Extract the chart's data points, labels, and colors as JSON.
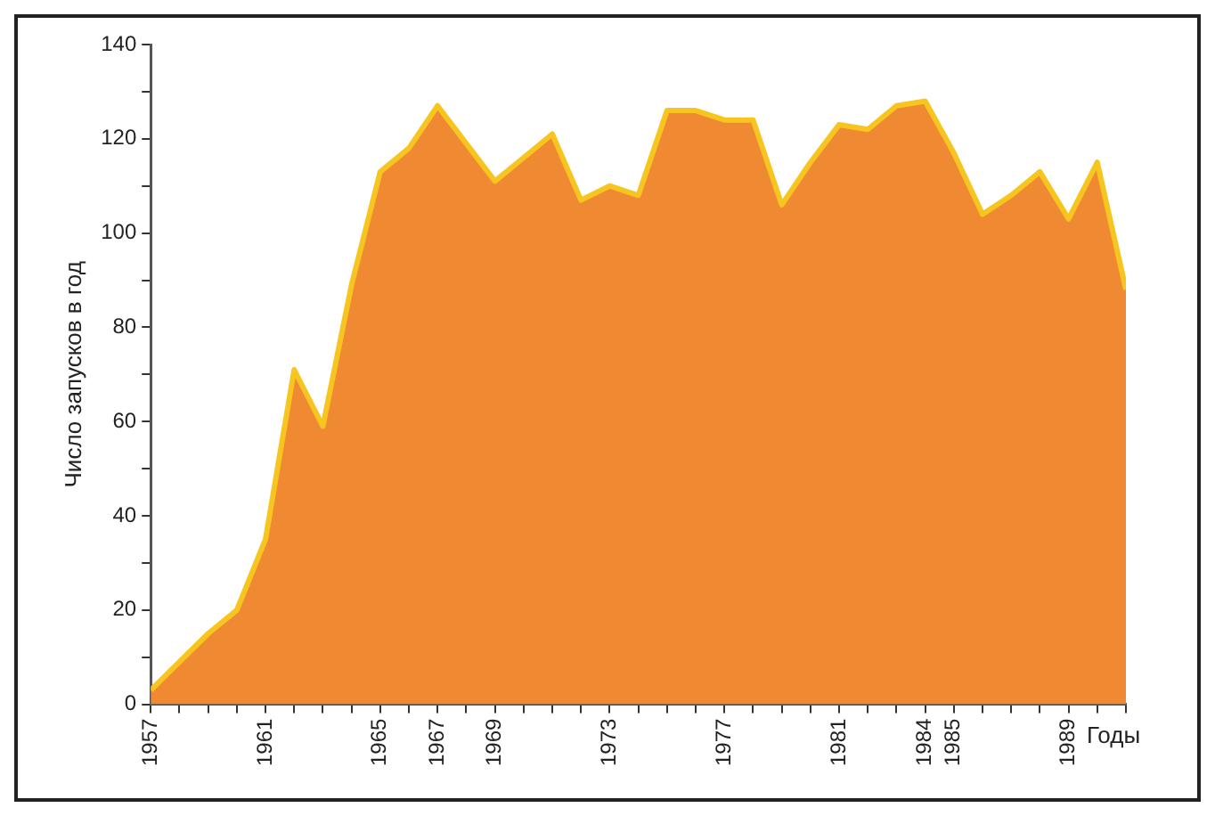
{
  "chart_data": {
    "type": "area",
    "ylabel": "Число запусков в год",
    "xlabel": "Годы",
    "x": [
      1957,
      1958,
      1959,
      1960,
      1961,
      1962,
      1963,
      1964,
      1965,
      1966,
      1967,
      1968,
      1969,
      1970,
      1971,
      1972,
      1973,
      1974,
      1975,
      1976,
      1977,
      1978,
      1979,
      1980,
      1981,
      1982,
      1983,
      1984,
      1985,
      1986,
      1987,
      1988,
      1989,
      1990,
      1991
    ],
    "series": [
      {
        "color": "#f08a32",
        "values": [
          3,
          9,
          15,
          20,
          35,
          71,
          59,
          89,
          113,
          118,
          127,
          119,
          111,
          116,
          121,
          107,
          110,
          108,
          126,
          126,
          124,
          124,
          106,
          115,
          123,
          122,
          127,
          128,
          117,
          104,
          108,
          113,
          103,
          115,
          88
        ]
      }
    ],
    "xlim": [
      1957,
      1991
    ],
    "xticks": [
      1957,
      {
        "value": 1958,
        "label": null
      },
      {
        "value": 1959,
        "label": null
      },
      {
        "value": 1960,
        "label": null
      },
      1961,
      {
        "value": 1962,
        "label": null
      },
      {
        "value": 1963,
        "label": null
      },
      {
        "value": 1964,
        "label": null
      },
      1965,
      {
        "value": 1966,
        "label": null
      },
      1967,
      {
        "value": 1968,
        "label": null
      },
      1969,
      {
        "value": 1970,
        "label": null
      },
      {
        "value": 1971,
        "label": null
      },
      {
        "value": 1972,
        "label": null
      },
      1973,
      {
        "value": 1974,
        "label": null
      },
      {
        "value": 1975,
        "label": null
      },
      {
        "value": 1976,
        "label": null
      },
      1977,
      {
        "value": 1978,
        "label": null
      },
      {
        "value": 1979,
        "label": null
      },
      {
        "value": 1980,
        "label": null
      },
      1981,
      {
        "value": 1982,
        "label": null
      },
      {
        "value": 1983,
        "label": null
      },
      1984,
      1985,
      {
        "value": 1986,
        "label": null
      },
      {
        "value": 1987,
        "label": null
      },
      {
        "value": 1988,
        "label": null
      },
      1989,
      {
        "value": 1990,
        "label": null
      },
      {
        "value": 1991,
        "label": null
      }
    ],
    "ylim": [
      0,
      140
    ],
    "yticks": [
      0,
      {
        "value": 10,
        "label": null
      },
      20,
      {
        "value": 30,
        "label": null
      },
      40,
      {
        "value": 50,
        "label": null
      },
      60,
      {
        "value": 70,
        "label": null
      },
      80,
      {
        "value": 90,
        "label": null
      },
      100,
      {
        "value": 110,
        "label": null
      },
      120,
      {
        "value": 130,
        "label": null
      },
      140
    ],
    "grid": false,
    "legend": false,
    "marker": "none"
  }
}
